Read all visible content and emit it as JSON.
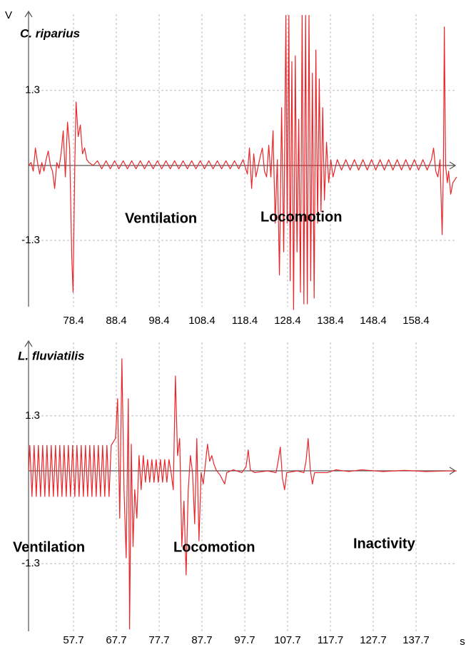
{
  "chart_data": [
    {
      "type": "line",
      "title": "C. riparius",
      "ylabel": "V",
      "color": "#e8262a",
      "annotations": [
        "Ventilation",
        "Locomotion"
      ],
      "xlim": [
        67.9,
        167.9
      ],
      "ylim": [
        -2.45,
        2.62
      ],
      "xticks": [
        78.4,
        88.4,
        98.4,
        108.4,
        118.4,
        128.4,
        138.4,
        148.4,
        158.4
      ],
      "yticks": [
        -1.3,
        1.3
      ],
      "grid": true,
      "x": [
        67.9,
        68.5,
        69,
        69.5,
        70,
        70.5,
        71,
        71.5,
        72,
        72.5,
        73,
        73.5,
        74,
        74.5,
        75,
        75.5,
        76,
        76.5,
        77,
        77.5,
        78,
        78.3,
        78.7,
        79,
        79.5,
        80,
        80.5,
        81,
        81.5,
        82,
        83,
        84,
        85,
        86,
        87,
        88,
        89,
        90,
        91,
        92,
        93,
        94,
        95,
        96,
        97,
        98,
        99,
        100,
        101,
        102,
        103,
        104,
        105,
        106,
        107,
        108,
        109,
        110,
        111,
        112,
        113,
        114,
        115,
        116,
        117,
        118,
        119,
        119.5,
        120,
        120.5,
        121,
        122,
        122.5,
        123,
        123.5,
        124,
        124.5,
        125,
        125.5,
        126,
        126.5,
        127,
        127.5,
        128,
        128.3,
        128.7,
        129,
        129.4,
        129.8,
        130.2,
        130.6,
        131,
        131.4,
        131.8,
        132.2,
        132.6,
        133,
        133.4,
        133.8,
        134.2,
        134.6,
        135,
        135.4,
        135.8,
        136.2,
        136.6,
        137,
        137.5,
        138,
        138.5,
        139,
        140,
        141,
        142,
        143,
        144,
        145,
        146,
        147,
        148,
        149,
        150,
        151,
        152,
        153,
        154,
        155,
        156,
        157,
        158,
        159,
        160,
        161,
        162,
        162.5,
        163,
        163.5,
        164,
        164.5,
        164.8,
        165,
        165.3,
        165.7,
        166,
        166.5,
        167,
        167.9
      ],
      "values": [
        0,
        0.05,
        -0.1,
        0.3,
        0.05,
        -0.15,
        0.05,
        -0.1,
        0.1,
        0.25,
        0,
        -0.1,
        -0.4,
        0.05,
        -0.05,
        0.2,
        0.6,
        -0.2,
        0.75,
        0.3,
        -1.6,
        -2.2,
        0,
        1.1,
        0.5,
        0.7,
        0.2,
        0.3,
        0.1,
        0.05,
        0,
        0.08,
        -0.06,
        0.08,
        -0.06,
        0.08,
        -0.06,
        0.08,
        -0.06,
        0.08,
        -0.06,
        0.08,
        -0.06,
        0.08,
        -0.06,
        0.08,
        -0.06,
        0.08,
        -0.06,
        0.08,
        -0.06,
        0.08,
        -0.06,
        0.08,
        -0.06,
        0.08,
        -0.06,
        0.08,
        -0.06,
        0.08,
        -0.06,
        0.08,
        -0.06,
        0.08,
        -0.06,
        0.1,
        -0.15,
        0.3,
        -0.4,
        0.2,
        -0.2,
        0.15,
        0.3,
        -0.1,
        -0.2,
        0.35,
        -0.2,
        0.6,
        -1.0,
        0.1,
        -1.9,
        1.0,
        -1.5,
        2.6,
        -1.0,
        2.6,
        -2.0,
        1.8,
        -2.5,
        1.9,
        -1.5,
        0.8,
        -2.2,
        2.6,
        -2.4,
        2.6,
        -2.4,
        2.6,
        -2.0,
        1.6,
        -2.3,
        2.0,
        -1.0,
        1.5,
        -0.8,
        1.0,
        -0.6,
        0.4,
        -0.3,
        0.1,
        -0.2,
        0.1,
        -0.08,
        0.1,
        -0.08,
        0.1,
        -0.08,
        0.1,
        -0.08,
        0.1,
        -0.08,
        0.1,
        -0.08,
        0.1,
        -0.08,
        0.1,
        -0.08,
        0.1,
        -0.08,
        0.1,
        -0.08,
        0.1,
        -0.08,
        0.1,
        0.3,
        -0.1,
        -0.2,
        0.1,
        -1.2,
        0,
        2.4,
        0,
        -0.3,
        -0.1,
        -0.5,
        -0.3,
        -0.2
      ]
    },
    {
      "type": "line",
      "title": "L. fluviatilis",
      "xlabel": "s",
      "color": "#e8262a",
      "annotations": [
        "Ventilation",
        "Locomotion",
        "Inactivity"
      ],
      "xlim": [
        47.2,
        147.2
      ],
      "ylim": [
        -2.49,
        2.59
      ],
      "xticks": [
        57.7,
        67.7,
        77.7,
        87.7,
        97.7,
        107.7,
        117.7,
        127.7,
        137.7
      ],
      "yticks": [
        -1.3,
        1.3
      ],
      "grid": true,
      "x": [
        47.2,
        47.5,
        48,
        48.5,
        49,
        49.5,
        50,
        50.5,
        51,
        51.5,
        52,
        52.5,
        53,
        53.5,
        54,
        54.5,
        55,
        55.5,
        56,
        56.5,
        57,
        57.5,
        58,
        58.5,
        59,
        59.5,
        60,
        60.5,
        61,
        61.5,
        62,
        62.5,
        63,
        63.5,
        64,
        64.5,
        65,
        65.5,
        66,
        66.5,
        67.5,
        68,
        68.5,
        69,
        69.5,
        70,
        70.5,
        70.8,
        71.2,
        71.6,
        72,
        72.5,
        73,
        73.5,
        74,
        74.5,
        75,
        75.5,
        76,
        76.5,
        77,
        77.5,
        78,
        78.5,
        79,
        79.5,
        80,
        80.5,
        81,
        81.5,
        82,
        82.5,
        83,
        83.5,
        84,
        84.5,
        85,
        85.5,
        86,
        86.5,
        87,
        87.5,
        88,
        89,
        89.5,
        90,
        90.5,
        91,
        92,
        93,
        93.5,
        95,
        97,
        98,
        98.5,
        99,
        100,
        103,
        105,
        105.5,
        106,
        106.5,
        107,
        107.5,
        110,
        111.5,
        112,
        112.5,
        113,
        113.5,
        114,
        117,
        119,
        122,
        125,
        130,
        135,
        140,
        145,
        147.2
      ],
      "values": [
        0.33,
        0.78,
        -0.12,
        0.78,
        -0.12,
        0.78,
        -0.12,
        0.78,
        -0.12,
        0.78,
        -0.12,
        0.78,
        -0.12,
        0.78,
        -0.12,
        0.78,
        -0.12,
        0.78,
        -0.12,
        0.78,
        -0.12,
        0.78,
        -0.12,
        0.78,
        -0.12,
        0.78,
        -0.12,
        0.78,
        -0.12,
        0.78,
        -0.12,
        0.78,
        -0.12,
        0.78,
        -0.12,
        0.78,
        -0.12,
        0.78,
        -0.12,
        0.78,
        0.9,
        1.6,
        -0.5,
        2.3,
        0,
        -1.2,
        1.6,
        -2.45,
        0.8,
        -1.0,
        0,
        -0.5,
        0.6,
        0,
        0.6,
        0.13,
        0.53,
        0.13,
        0.53,
        0.13,
        0.53,
        0.13,
        0.53,
        0.13,
        0.53,
        0.13,
        0.53,
        0.3,
        0,
        2.0,
        0.6,
        0.9,
        -1.0,
        -0.2,
        -1.5,
        0,
        0.6,
        0.3,
        -0.6,
        0.9,
        -0.9,
        0.3,
        0.1,
        0.8,
        0.5,
        0.6,
        0.45,
        0.35,
        0.25,
        0.1,
        0.3,
        0.35,
        0.3,
        0.4,
        0.7,
        0.35,
        0.3,
        0.33,
        0.3,
        0.5,
        0.75,
        0.2,
        0,
        0.3,
        0.33,
        0.3,
        0.5,
        0.9,
        0.35,
        0.1,
        0.3,
        0.3,
        0.35,
        0.32,
        0.35,
        0.32,
        0.34,
        0.32,
        0.33,
        0.33
      ]
    }
  ]
}
